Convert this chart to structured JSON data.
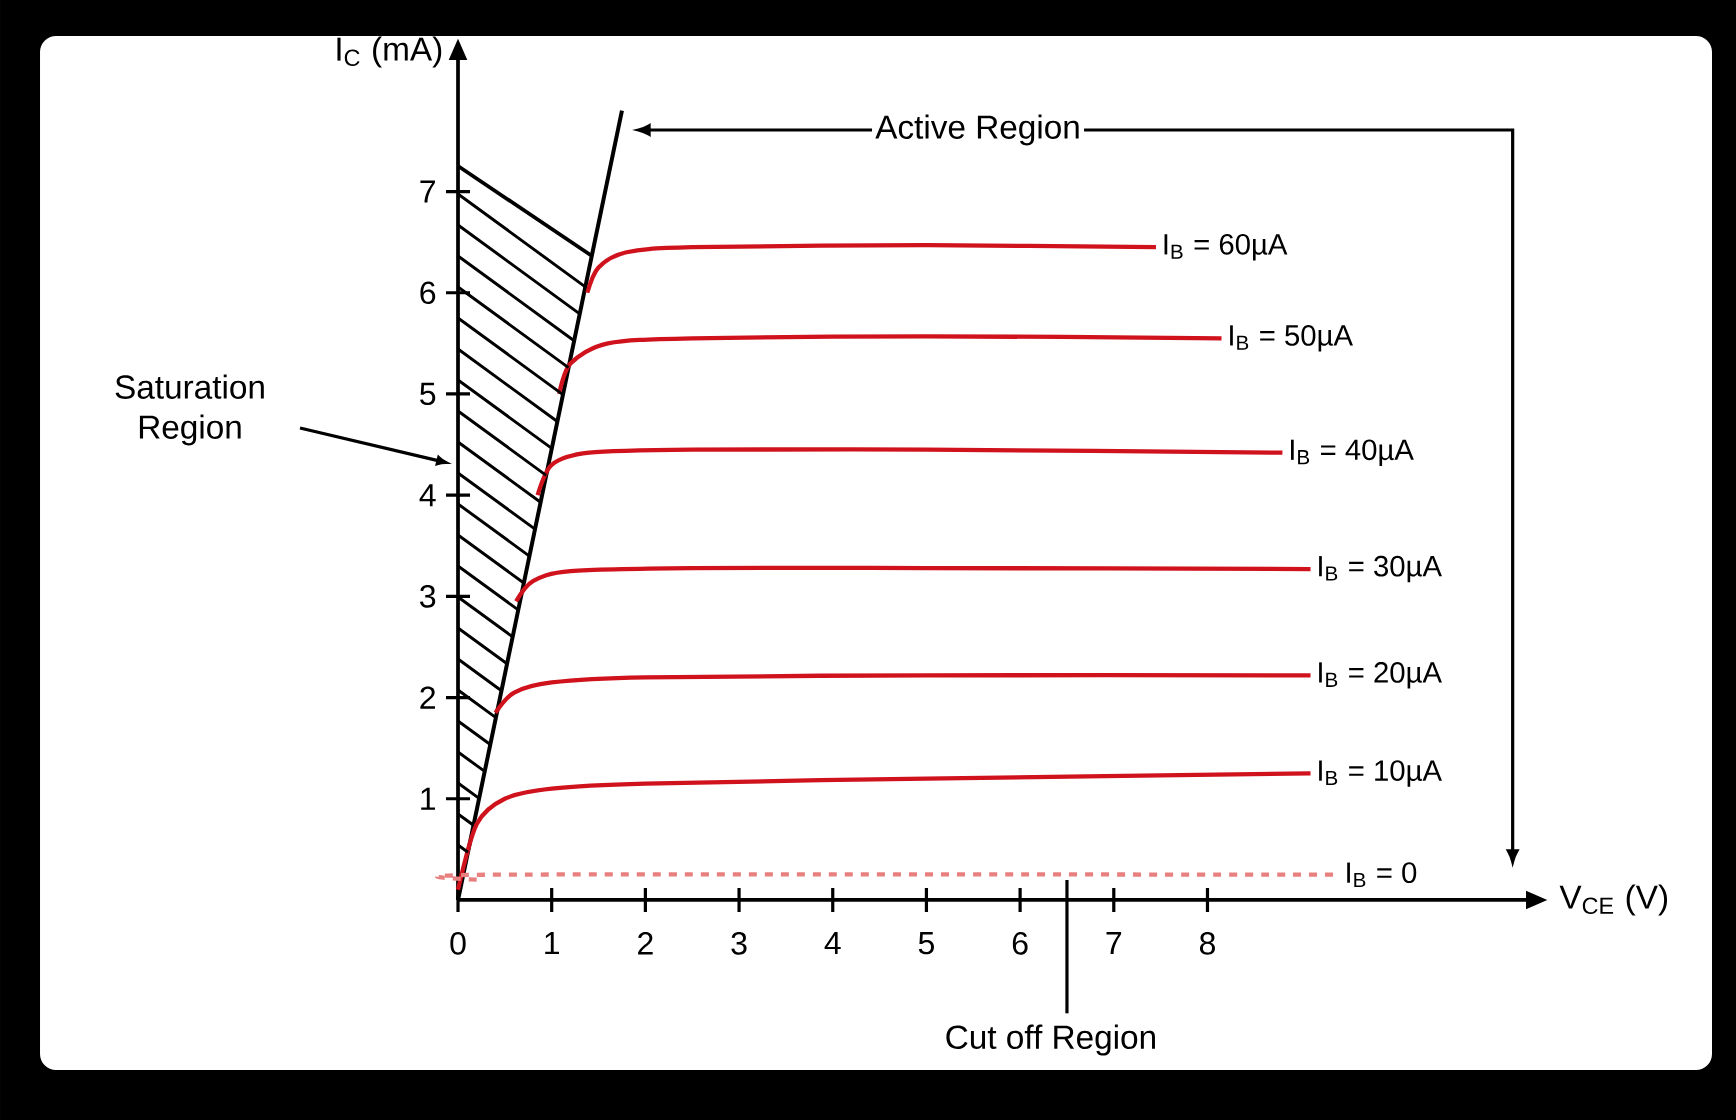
{
  "chart_data": {
    "type": "line",
    "xlabel": "V$_{CE}$ (V)",
    "ylabel": "I$_{C}$ (mA)",
    "xlim": [
      0,
      11.4
    ],
    "ylim": [
      0,
      8.3
    ],
    "xticks": [
      0,
      1,
      2,
      3,
      4,
      5,
      6,
      7,
      8
    ],
    "yticks": [
      1,
      2,
      3,
      4,
      5,
      6,
      7
    ],
    "marker": "none",
    "line_style": "solid",
    "series": [
      {
        "type": "line",
        "color": "#000000",
        "x": [
          0,
          1.75
        ],
        "values": [
          0,
          7.8
        ]
      },
      {
        "name": "I$_{B}$ = 60µA",
        "color": "#d0121c",
        "x": [
          1.38,
          1.5,
          1.8,
          2.5,
          5,
          7.45
        ],
        "values": [
          6.0,
          6.25,
          6.4,
          6.45,
          6.47,
          6.45
        ]
      },
      {
        "name": "I$_{B}$ = 50µA",
        "color": "#d0121c",
        "x": [
          1.08,
          1.2,
          1.6,
          2.5,
          5,
          8.15
        ],
        "values": [
          5.0,
          5.3,
          5.5,
          5.55,
          5.57,
          5.55
        ]
      },
      {
        "name": "I$_{B}$ = 40µA",
        "color": "#d0121c",
        "x": [
          0.85,
          1.0,
          1.4,
          2.5,
          5,
          8.8
        ],
        "values": [
          4.0,
          4.3,
          4.42,
          4.45,
          4.45,
          4.42
        ]
      },
      {
        "name": "I$_{B}$ = 30µA",
        "color": "#d0121c",
        "x": [
          0.62,
          0.8,
          1.2,
          2.5,
          5,
          9.1
        ],
        "values": [
          2.95,
          3.15,
          3.25,
          3.28,
          3.28,
          3.27
        ]
      },
      {
        "name": "I$_{B}$ = 20µA",
        "color": "#d0121c",
        "x": [
          0.4,
          0.6,
          1.0,
          2,
          5,
          9.1
        ],
        "values": [
          1.85,
          2.05,
          2.15,
          2.2,
          2.22,
          2.22
        ]
      },
      {
        "name": "I$_{B}$ = 10µA",
        "color": "#d0121c",
        "x": [
          0,
          0.2,
          0.5,
          1,
          2,
          5,
          9.1
        ],
        "values": [
          0.1,
          0.75,
          1.0,
          1.1,
          1.15,
          1.2,
          1.25
        ]
      },
      {
        "name": "I$_{B}$ = 0",
        "color": "#e88080",
        "line_style": "dashed",
        "x": [
          0.2,
          0.4,
          9.4
        ],
        "values": [
          0.2,
          0.25,
          0.25
        ]
      }
    ],
    "annotations": [
      "Active Region",
      "Saturation Region",
      {
        "text": "Cut off Region",
        "x": 6.5,
        "y": 0.25
      }
    ]
  }
}
